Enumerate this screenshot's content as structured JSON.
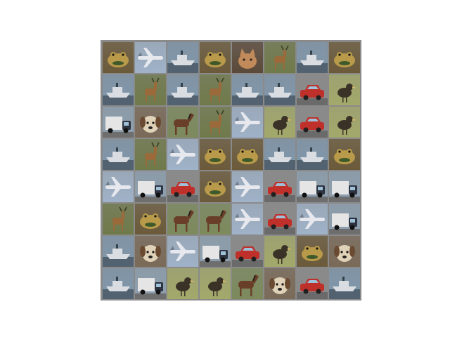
{
  "grid": {
    "rows": 8,
    "cols": 8,
    "tiles": [
      [
        "frog",
        "airplane",
        "ship",
        "frog",
        "cat",
        "deer",
        "ship",
        "frog"
      ],
      [
        "ship",
        "deer",
        "ship",
        "deer",
        "ship",
        "ship",
        "automobile",
        "bird"
      ],
      [
        "truck",
        "dog",
        "horse",
        "deer",
        "airplane",
        "bird",
        "automobile",
        "bird"
      ],
      [
        "ship",
        "deer",
        "airplane",
        "frog",
        "frog",
        "ship",
        "ship",
        "frog"
      ],
      [
        "airplane",
        "truck",
        "automobile",
        "frog",
        "airplane",
        "automobile",
        "truck",
        "truck"
      ],
      [
        "deer",
        "frog",
        "horse",
        "horse",
        "airplane",
        "automobile",
        "airplane",
        "truck"
      ],
      [
        "ship",
        "dog",
        "airplane",
        "truck",
        "automobile",
        "bird",
        "frog",
        "dog"
      ],
      [
        "ship",
        "truck",
        "bird",
        "bird",
        "horse",
        "dog",
        "automobile",
        "ship"
      ]
    ],
    "palette": {
      "frog": {
        "bg": "#6b5a3a",
        "fg": "#b89a4a",
        "accent": "#3f5a2a"
      },
      "airplane": {
        "bg": "#9fb2c8",
        "fg": "#e6e8ee",
        "accent": "#707c8a"
      },
      "ship": {
        "bg": "#7f97ac",
        "fg": "#d9dde2",
        "accent": "#34404a"
      },
      "cat": {
        "bg": "#5b4a3a",
        "fg": "#c08a5a",
        "accent": "#2a2320"
      },
      "deer": {
        "bg": "#6f7a4a",
        "fg": "#9a6a3a",
        "accent": "#3a3a22"
      },
      "automobile": {
        "bg": "#8a8a8a",
        "fg": "#c0302a",
        "accent": "#202020"
      },
      "bird": {
        "bg": "#a3a96a",
        "fg": "#3a3226",
        "accent": "#d7b66a"
      },
      "truck": {
        "bg": "#8da0b0",
        "fg": "#e5e5e5",
        "accent": "#2d3340"
      },
      "dog": {
        "bg": "#7a6a58",
        "fg": "#e0d2b8",
        "accent": "#6a4a30"
      },
      "horse": {
        "bg": "#7c8a5c",
        "fg": "#6a3f2a",
        "accent": "#2b2218"
      }
    }
  }
}
